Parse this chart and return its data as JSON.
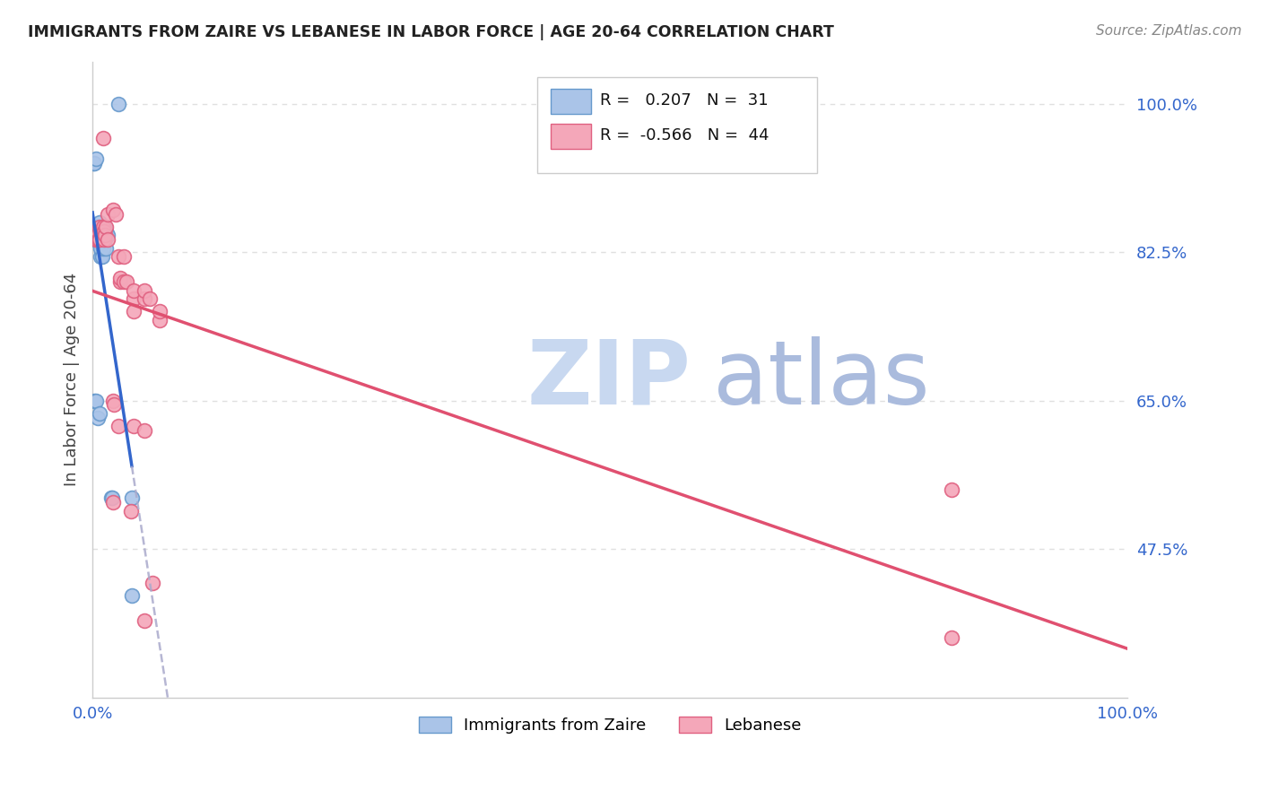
{
  "title": "IMMIGRANTS FROM ZAIRE VS LEBANESE IN LABOR FORCE | AGE 20-64 CORRELATION CHART",
  "source": "Source: ZipAtlas.com",
  "ylabel": "In Labor Force | Age 20-64",
  "xlim": [
    0.0,
    100.0
  ],
  "ylim": [
    30.0,
    105.0
  ],
  "yticks": [
    47.5,
    65.0,
    82.5,
    100.0
  ],
  "ytick_labels": [
    "47.5%",
    "65.0%",
    "82.5%",
    "100.0%"
  ],
  "r_zaire": 0.207,
  "n_zaire": 31,
  "r_lebanese": -0.566,
  "n_lebanese": 44,
  "zaire_color": "#aac4e8",
  "lebanese_color": "#f4a7b9",
  "zaire_edge_color": "#6699cc",
  "lebanese_edge_color": "#e06080",
  "trend_zaire_color": "#3366cc",
  "trend_zaire_dash_color": "#aaaacc",
  "trend_lebanese_color": "#e05070",
  "watermark_zip": "ZIP",
  "watermark_atlas": "atlas",
  "watermark_color_zip": "#c8d8f0",
  "watermark_color_atlas": "#aabbdd",
  "zaire_points": [
    [
      0.2,
      84.0
    ],
    [
      0.3,
      85.5
    ],
    [
      0.4,
      85.5
    ],
    [
      0.6,
      85.5
    ],
    [
      0.7,
      86.0
    ],
    [
      0.8,
      82.0
    ],
    [
      0.8,
      83.0
    ],
    [
      0.9,
      84.0
    ],
    [
      0.9,
      82.0
    ],
    [
      1.0,
      83.0
    ],
    [
      1.0,
      84.5
    ],
    [
      1.0,
      85.0
    ],
    [
      1.1,
      84.0
    ],
    [
      1.1,
      85.5
    ],
    [
      1.2,
      84.0
    ],
    [
      1.2,
      85.5
    ],
    [
      1.3,
      83.0
    ],
    [
      1.3,
      85.0
    ],
    [
      1.5,
      84.5
    ],
    [
      0.1,
      93.0
    ],
    [
      0.2,
      93.0
    ],
    [
      0.3,
      93.5
    ],
    [
      2.5,
      100.0
    ],
    [
      0.2,
      65.0
    ],
    [
      0.3,
      65.0
    ],
    [
      0.5,
      63.0
    ],
    [
      0.7,
      63.5
    ],
    [
      1.8,
      53.5
    ],
    [
      1.9,
      53.5
    ],
    [
      3.8,
      53.5
    ],
    [
      3.8,
      42.0
    ]
  ],
  "lebanese_points": [
    [
      0.3,
      84.0
    ],
    [
      0.4,
      84.0
    ],
    [
      0.5,
      84.5
    ],
    [
      0.6,
      84.0
    ],
    [
      0.7,
      84.0
    ],
    [
      0.7,
      85.5
    ],
    [
      0.8,
      85.0
    ],
    [
      0.9,
      84.5
    ],
    [
      1.0,
      84.5
    ],
    [
      1.0,
      85.5
    ],
    [
      1.1,
      85.0
    ],
    [
      1.1,
      84.0
    ],
    [
      1.2,
      84.5
    ],
    [
      1.3,
      85.5
    ],
    [
      1.5,
      84.0
    ],
    [
      1.5,
      87.0
    ],
    [
      2.0,
      87.5
    ],
    [
      2.2,
      87.0
    ],
    [
      1.0,
      96.0
    ],
    [
      2.5,
      82.0
    ],
    [
      3.0,
      82.0
    ],
    [
      2.7,
      79.0
    ],
    [
      2.7,
      79.5
    ],
    [
      3.0,
      79.0
    ],
    [
      3.3,
      79.0
    ],
    [
      4.0,
      77.0
    ],
    [
      4.0,
      78.0
    ],
    [
      4.0,
      75.5
    ],
    [
      5.0,
      77.0
    ],
    [
      5.0,
      78.0
    ],
    [
      5.5,
      77.0
    ],
    [
      6.5,
      74.5
    ],
    [
      6.5,
      75.5
    ],
    [
      2.0,
      65.0
    ],
    [
      2.1,
      64.5
    ],
    [
      2.5,
      62.0
    ],
    [
      4.0,
      62.0
    ],
    [
      5.0,
      61.5
    ],
    [
      2.0,
      53.0
    ],
    [
      3.7,
      52.0
    ],
    [
      5.8,
      43.5
    ],
    [
      83.0,
      54.5
    ],
    [
      5.0,
      39.0
    ],
    [
      83.0,
      37.0
    ]
  ],
  "background_color": "#ffffff",
  "plot_bg_color": "#ffffff",
  "grid_color": "#e0e0e0"
}
